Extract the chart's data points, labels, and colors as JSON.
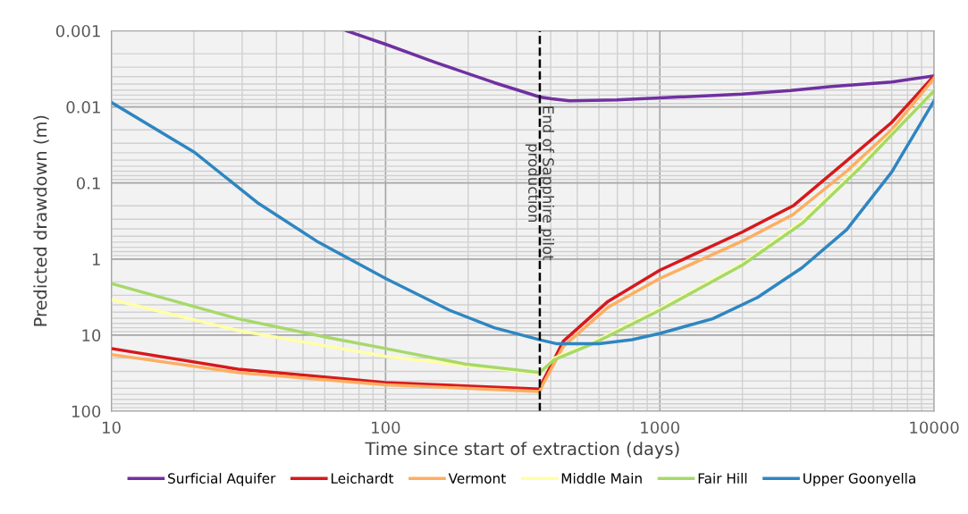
{
  "chart_data": {
    "type": "line",
    "xlabel": "Time since start of extraction (days)",
    "ylabel": "Predicted drawdown (m)",
    "log": "xy",
    "xlim": [
      10,
      10000
    ],
    "ylim": [
      100,
      0.001
    ],
    "xticks": [
      10,
      100,
      1000,
      10000
    ],
    "yticks": [
      0.001,
      0.01,
      0.1,
      1,
      10,
      100
    ],
    "grid": true,
    "legend": "bottom",
    "marker": "none",
    "line_style": "solid",
    "ref_lines": [
      {
        "axis": "x",
        "value": 365,
        "label": "End of Sapphire pilot\nproduction",
        "color": "#000000",
        "line_style": "dashed"
      }
    ],
    "series": [
      {
        "name": "Surficial Aquifer",
        "color": "#7030a0",
        "x": [
          72,
          100,
          152,
          249,
          365,
          403,
          468,
          697,
          1000,
          2000,
          3000,
          4230,
          7000,
          10000
        ],
        "values": [
          0.001,
          0.0015,
          0.0026,
          0.0048,
          0.0074,
          0.0078,
          0.0083,
          0.0081,
          0.0076,
          0.0068,
          0.0061,
          0.0054,
          0.0047,
          0.0039
        ]
      },
      {
        "name": "Leichardt",
        "color": "#d7191c",
        "x": [
          10,
          29,
          100,
          365,
          374,
          445,
          647,
          1000,
          2000,
          3060,
          4800,
          7000,
          10000
        ],
        "values": [
          15,
          28,
          42,
          51,
          41,
          12,
          3.6,
          1.4,
          0.44,
          0.2,
          0.051,
          0.016,
          0.0039
        ]
      },
      {
        "name": "Vermont",
        "color": "#fdae61",
        "x": [
          10,
          29,
          100,
          365,
          374,
          445,
          647,
          1000,
          2000,
          3060,
          4800,
          7000,
          10000
        ],
        "values": [
          18,
          31,
          45,
          55,
          45,
          14,
          4.3,
          1.8,
          0.58,
          0.26,
          0.07,
          0.02,
          0.0042
        ]
      },
      {
        "name": "Middle Main",
        "color": "#ffffa8",
        "x": [
          10,
          29,
          100,
          365,
          412,
          569,
          1000,
          2000,
          3300,
          5420,
          10000
        ],
        "values": [
          3.4,
          8.7,
          19,
          32,
          20,
          12.5,
          4.5,
          1.15,
          0.32,
          0.058,
          0.006
        ]
      },
      {
        "name": "Fair Hill",
        "color": "#a6d96a",
        "x": [
          10,
          29,
          62,
          100,
          195,
          365,
          412,
          569,
          1000,
          2000,
          3300,
          5420,
          10000
        ],
        "values": [
          2.1,
          6.1,
          10.8,
          15,
          24,
          31,
          21,
          13,
          4.7,
          1.2,
          0.34,
          0.061,
          0.0061
        ]
      },
      {
        "name": "Upper Goonyella",
        "color": "#2e86c1",
        "x": [
          10,
          20,
          34,
          56,
          100,
          171,
          249,
          365,
          422,
          600,
          792,
          1000,
          1557,
          2270,
          3300,
          4800,
          7000,
          10000
        ],
        "values": [
          0.0087,
          0.039,
          0.18,
          0.58,
          1.8,
          4.7,
          8,
          11.5,
          13,
          13,
          11.5,
          9.5,
          6.1,
          3.2,
          1.3,
          0.41,
          0.072,
          0.0083
        ]
      }
    ]
  }
}
